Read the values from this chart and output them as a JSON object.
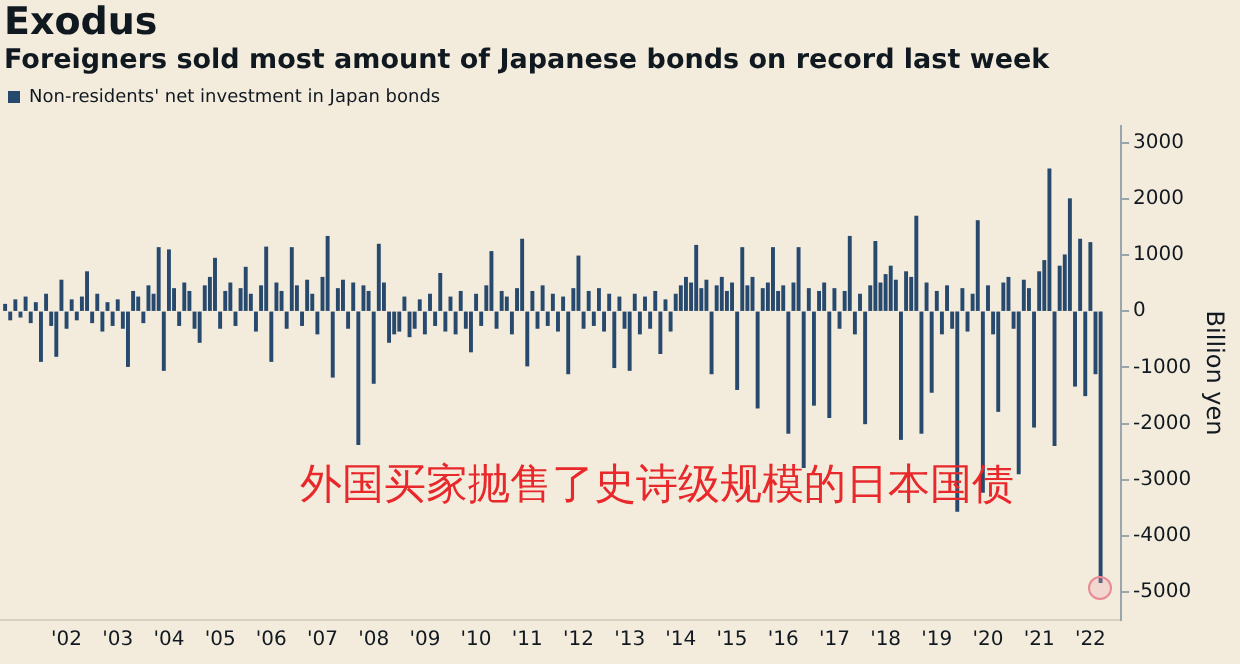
{
  "chart_data": {
    "type": "bar",
    "title": "Exodus",
    "subtitle": "Foreigners sold most amount of Japanese bonds on record last week",
    "ylabel": "Billion yen",
    "legend": "top left",
    "annotations": [
      "外国买家抛售了史诗级规模的日本国债"
    ],
    "xlim": [
      2000.7,
      2022.6
    ],
    "xticks": [
      {
        "value": 2002,
        "label": "'02"
      },
      {
        "value": 2003,
        "label": "'03"
      },
      {
        "value": 2004,
        "label": "'04"
      },
      {
        "value": 2005,
        "label": "'05"
      },
      {
        "value": 2006,
        "label": "'06"
      },
      {
        "value": 2007,
        "label": "'07"
      },
      {
        "value": 2008,
        "label": "'08"
      },
      {
        "value": 2009,
        "label": "'09"
      },
      {
        "value": 2010,
        "label": "'10"
      },
      {
        "value": 2011,
        "label": "'11"
      },
      {
        "value": 2012,
        "label": "'12"
      },
      {
        "value": 2013,
        "label": "'13"
      },
      {
        "value": 2014,
        "label": "'14"
      },
      {
        "value": 2015,
        "label": "'15"
      },
      {
        "value": 2016,
        "label": "'16"
      },
      {
        "value": 2017,
        "label": "'17"
      },
      {
        "value": 2018,
        "label": "'18"
      },
      {
        "value": 2019,
        "label": "'19"
      },
      {
        "value": 2020,
        "label": "'20"
      },
      {
        "value": 2021,
        "label": "'21"
      },
      {
        "value": 2022,
        "label": "'22"
      }
    ],
    "ylim": [
      -5500,
      3300
    ],
    "yticks": [
      -5000,
      -4000,
      -3000,
      -2000,
      -1000,
      0,
      1000,
      2000,
      3000
    ],
    "x": [
      2000.8,
      2000.9,
      2001.0,
      2001.1,
      2001.2,
      2001.3,
      2001.4,
      2001.5,
      2001.6,
      2001.7,
      2001.8,
      2001.9,
      2002.0,
      2002.1,
      2002.2,
      2002.3,
      2002.4,
      2002.5,
      2002.6,
      2002.7,
      2002.8,
      2002.9,
      2003.0,
      2003.1,
      2003.2,
      2003.3,
      2003.4,
      2003.5,
      2003.6,
      2003.7,
      2003.8,
      2003.9,
      2004.0,
      2004.1,
      2004.2,
      2004.3,
      2004.4,
      2004.5,
      2004.6,
      2004.7,
      2004.8,
      2004.9,
      2005.0,
      2005.1,
      2005.2,
      2005.3,
      2005.4,
      2005.5,
      2005.6,
      2005.7,
      2005.8,
      2005.9,
      2006.0,
      2006.1,
      2006.2,
      2006.3,
      2006.4,
      2006.5,
      2006.6,
      2006.7,
      2006.8,
      2006.9,
      2007.0,
      2007.1,
      2007.2,
      2007.3,
      2007.4,
      2007.5,
      2007.6,
      2007.7,
      2007.8,
      2007.9,
      2008.0,
      2008.1,
      2008.2,
      2008.3,
      2008.4,
      2008.5,
      2008.6,
      2008.7,
      2008.8,
      2008.9,
      2009.0,
      2009.1,
      2009.2,
      2009.3,
      2009.4,
      2009.5,
      2009.6,
      2009.7,
      2009.8,
      2009.9,
      2010.0,
      2010.1,
      2010.2,
      2010.3,
      2010.4,
      2010.5,
      2010.6,
      2010.7,
      2010.8,
      2010.9,
      2011.0,
      2011.1,
      2011.2,
      2011.3,
      2011.4,
      2011.5,
      2011.6,
      2011.7,
      2011.8,
      2011.9,
      2012.0,
      2012.1,
      2012.2,
      2012.3,
      2012.4,
      2012.5,
      2012.6,
      2012.7,
      2012.8,
      2012.9,
      2013.0,
      2013.1,
      2013.2,
      2013.3,
      2013.4,
      2013.5,
      2013.6,
      2013.7,
      2013.8,
      2013.9,
      2014.0,
      2014.1,
      2014.2,
      2014.3,
      2014.4,
      2014.5,
      2014.6,
      2014.7,
      2014.8,
      2014.9,
      2015.0,
      2015.1,
      2015.2,
      2015.3,
      2015.4,
      2015.5,
      2015.6,
      2015.7,
      2015.8,
      2015.9,
      2016.0,
      2016.1,
      2016.2,
      2016.3,
      2016.4,
      2016.5,
      2016.6,
      2016.7,
      2016.8,
      2016.9,
      2017.0,
      2017.1,
      2017.2,
      2017.3,
      2017.4,
      2017.5,
      2017.6,
      2017.7,
      2017.8,
      2017.9,
      2018.0,
      2018.1,
      2018.2,
      2018.3,
      2018.4,
      2018.5,
      2018.6,
      2018.7,
      2018.8,
      2018.9,
      2019.0,
      2019.1,
      2019.2,
      2019.3,
      2019.4,
      2019.5,
      2019.6,
      2019.7,
      2019.8,
      2019.9,
      2020.0,
      2020.1,
      2020.2,
      2020.3,
      2020.4,
      2020.5,
      2020.6,
      2020.7,
      2020.8,
      2020.9,
      2021.0,
      2021.1,
      2021.2,
      2021.3,
      2021.4,
      2021.5,
      2021.6,
      2021.7,
      2021.8,
      2021.9,
      2022.0,
      2022.1,
      2022.2
    ],
    "series": [
      {
        "name": "Non-residents' net investment in Japan bonds",
        "color": "#27496d",
        "values": [
          120,
          -150,
          200,
          -100,
          250,
          -200,
          150,
          -890,
          300,
          -250,
          -800,
          550,
          -300,
          200,
          -150,
          250,
          700,
          -200,
          300,
          -350,
          150,
          -250,
          200,
          -300,
          -980,
          350,
          250,
          -200,
          450,
          300,
          1130,
          -1050,
          1090,
          400,
          -250,
          500,
          350,
          -300,
          -550,
          450,
          600,
          940,
          -300,
          350,
          500,
          -250,
          400,
          780,
          300,
          -350,
          450,
          1140,
          -890,
          500,
          350,
          -300,
          1130,
          450,
          -250,
          550,
          300,
          -400,
          600,
          1330,
          -1170,
          400,
          550,
          -300,
          500,
          -2370,
          450,
          350,
          -1280,
          1190,
          500,
          -550,
          -400,
          -350,
          250,
          -450,
          -300,
          200,
          -400,
          300,
          -250,
          670,
          -350,
          250,
          -400,
          350,
          -300,
          -720,
          300,
          -250,
          450,
          1060,
          -300,
          350,
          250,
          -400,
          400,
          1280,
          -970,
          350,
          -300,
          450,
          -250,
          300,
          -350,
          250,
          -1110,
          400,
          980,
          -300,
          350,
          -250,
          400,
          -350,
          300,
          -1000,
          250,
          -300,
          -1050,
          300,
          -400,
          250,
          -300,
          350,
          -750,
          200,
          -350,
          300,
          450,
          600,
          500,
          1170,
          400,
          550,
          -1110,
          450,
          600,
          350,
          500,
          -1390,
          1130,
          450,
          600,
          -1720,
          400,
          500,
          1130,
          350,
          450,
          -2170,
          500,
          1130,
          -2780,
          400,
          -1670,
          350,
          500,
          -1890,
          400,
          -300,
          350,
          1330,
          -400,
          300,
          -2000,
          450,
          1240,
          500,
          650,
          800,
          550,
          -2280,
          700,
          600,
          1690,
          -2170,
          500,
          -1440,
          350,
          -400,
          450,
          -300,
          -3560,
          400,
          -350,
          300,
          1610,
          -3220,
          450,
          -400,
          -1780,
          500,
          600,
          -300,
          -2890,
          550,
          400,
          -2060,
          700,
          900,
          2530,
          -2390,
          800,
          1000,
          2000,
          -1330,
          1280,
          -1500,
          1220,
          -1110,
          -4830
        ]
      }
    ]
  }
}
